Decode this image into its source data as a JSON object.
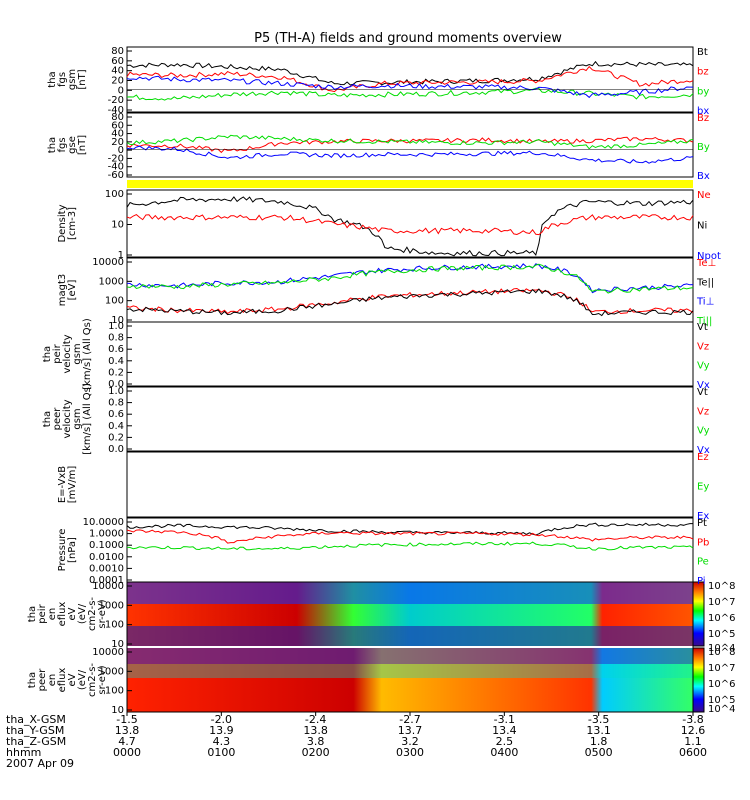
{
  "title": "P5 (TH-A) fields and ground moments overview",
  "date_label": "2007 Apr 09",
  "time_axis": {
    "rows": [
      {
        "label": "tha_X-GSM",
        "values": [
          "-1.5",
          "-2.0",
          "-2.4",
          "-2.7",
          "-3.1",
          "-3.5",
          "-3.8"
        ]
      },
      {
        "label": "tha_Y-GSM",
        "values": [
          "13.8",
          "13.9",
          "13.8",
          "13.7",
          "13.4",
          "13.1",
          "12.6"
        ]
      },
      {
        "label": "tha_Z-GSM",
        "values": [
          "4.7",
          "4.3",
          "3.8",
          "3.2",
          "2.5",
          "1.8",
          "1.1"
        ]
      },
      {
        "label": "hhmm",
        "values": [
          "0000",
          "0100",
          "0200",
          "0300",
          "0400",
          "0500",
          "0600"
        ]
      }
    ]
  },
  "colorbars": [
    {
      "labels": [
        "10^8",
        "10^7",
        "10^6",
        "10^5",
        "10^4"
      ]
    },
    {
      "labels": [
        "10^8",
        "10^7",
        "10^6",
        "10^5",
        "10^4"
      ]
    }
  ],
  "colors": {
    "black": "#000000",
    "red": "#ff0000",
    "green": "#00dd00",
    "blue": "#0000ff",
    "yellow": "#ffff00"
  },
  "chart_data": [
    {
      "type": "line",
      "panel": "fgs_gsm",
      "ylabel": [
        "tha",
        "fgs",
        "gsm",
        "[nT]"
      ],
      "yticks": [
        "80",
        "60",
        "40",
        "20",
        "0",
        "-20",
        "-40"
      ],
      "ylim": [
        -45,
        85
      ],
      "legend": [
        "Bt",
        "bz",
        "by",
        "bx"
      ],
      "series": [
        {
          "name": "Bt",
          "values": [
            48,
            50,
            45,
            40,
            12,
            14,
            16,
            18,
            22,
            52,
            50,
            48
          ]
        },
        {
          "name": "bz",
          "values": [
            30,
            28,
            32,
            25,
            -2,
            12,
            14,
            15,
            18,
            45,
            10,
            20
          ]
        },
        {
          "name": "by",
          "values": [
            -15,
            -18,
            -10,
            -5,
            -12,
            -10,
            -8,
            -5,
            -2,
            -8,
            -15,
            -10
          ]
        },
        {
          "name": "bx",
          "values": [
            25,
            20,
            18,
            12,
            5,
            8,
            6,
            5,
            3,
            -12,
            -5,
            5
          ]
        }
      ]
    },
    {
      "type": "line",
      "panel": "fgs_gse",
      "ylabel": [
        "tha",
        "fgs",
        "gse",
        "[nT]"
      ],
      "yticks": [
        "80",
        "60",
        "40",
        "20",
        "0",
        "-20",
        "-40",
        "-60"
      ],
      "ylim": [
        -65,
        85
      ],
      "legend": [
        "Bz",
        "By",
        "Bx"
      ],
      "series": [
        {
          "name": "Bz",
          "values": [
            10,
            8,
            -5,
            15,
            18,
            20,
            20,
            22,
            18,
            20,
            25,
            20
          ]
        },
        {
          "name": "By",
          "values": [
            15,
            20,
            30,
            25,
            20,
            18,
            16,
            15,
            18,
            5,
            10,
            20
          ]
        },
        {
          "name": "Bx",
          "values": [
            5,
            0,
            -20,
            -10,
            -15,
            -12,
            -12,
            -10,
            -8,
            -25,
            -30,
            -20
          ]
        }
      ]
    },
    {
      "type": "line",
      "panel": "density",
      "ylabel": [
        "Density",
        "[cm-3]"
      ],
      "scale": "log",
      "yticks": [
        "100",
        "10",
        "1"
      ],
      "ylim": [
        0.2,
        200
      ],
      "legend": [
        "Ne",
        "Ni",
        "Npot"
      ],
      "series": [
        {
          "name": "Ni",
          "values": [
            40,
            70,
            80,
            60,
            10,
            0.5,
            0.3,
            0.3,
            0.3,
            60,
            50,
            60
          ]
        },
        {
          "name": "Ne",
          "values": [
            12,
            12,
            12,
            12,
            6,
            3,
            3,
            3,
            2.5,
            12,
            12,
            12
          ]
        }
      ]
    },
    {
      "type": "line",
      "panel": "temperature",
      "ylabel": [
        "magt3",
        "[eV]"
      ],
      "scale": "log",
      "yticks": [
        "10000",
        "1000",
        "100",
        "10"
      ],
      "ylim": [
        8,
        12000
      ],
      "legend": [
        "Te⊥",
        "Te||",
        "Ti⊥",
        "Ti||"
      ],
      "series": [
        {
          "name": "Ti⊥",
          "values": [
            600,
            500,
            700,
            800,
            1500,
            3000,
            4000,
            4500,
            5000,
            300,
            400,
            500
          ]
        },
        {
          "name": "Ti||",
          "values": [
            500,
            450,
            600,
            700,
            1200,
            2500,
            3500,
            4000,
            4500,
            250,
            350,
            400
          ]
        },
        {
          "name": "Te⊥",
          "values": [
            40,
            30,
            25,
            35,
            70,
            150,
            200,
            250,
            300,
            25,
            30,
            30
          ]
        },
        {
          "name": "Te||",
          "values": [
            35,
            28,
            22,
            30,
            60,
            130,
            180,
            220,
            280,
            20,
            25,
            25
          ]
        }
      ]
    },
    {
      "type": "line",
      "panel": "peir_velocity",
      "ylabel": [
        "tha",
        "peir",
        "velocity",
        "gsm",
        "[km/s] (All Qs)"
      ],
      "yticks": [
        "1.0",
        "0.8",
        "0.6",
        "0.4",
        "0.2",
        "0.0"
      ],
      "ylim": [
        0,
        1
      ],
      "legend": [
        "Vt",
        "Vz",
        "Vy",
        "Vx"
      ],
      "series": []
    },
    {
      "type": "line",
      "panel": "peer_velocity",
      "ylabel": [
        "tha",
        "peer",
        "velocity",
        "gsm",
        "[km/s] (All Qs)"
      ],
      "yticks": [
        "1.0",
        "0.8",
        "0.6",
        "0.4",
        "0.2",
        "0.0"
      ],
      "ylim": [
        0,
        1
      ],
      "legend": [
        "Vt",
        "Vz",
        "Vy",
        "Vx"
      ],
      "series": []
    },
    {
      "type": "line",
      "panel": "efield",
      "ylabel": [
        "E=-VxB",
        "[mV/m]"
      ],
      "yticks": [],
      "legend": [
        "Ez",
        "Ey",
        "Ex"
      ],
      "series": []
    },
    {
      "type": "line",
      "panel": "pressure",
      "ylabel": [
        "Pressure",
        "[nPa]"
      ],
      "scale": "log",
      "yticks": [
        "10.0000",
        "1.0000",
        "0.1000",
        "0.0100",
        "0.0010",
        "0.0001"
      ],
      "ylim": [
        0.0001,
        10
      ],
      "legend": [
        "Pt",
        "Pb",
        "Pe",
        "Pi"
      ],
      "series": [
        {
          "name": "Pt",
          "values": [
            2,
            2.5,
            2,
            1.5,
            1,
            0.8,
            0.7,
            0.7,
            0.6,
            3,
            3,
            3
          ]
        },
        {
          "name": "Pb",
          "values": [
            1,
            0.8,
            0.1,
            0.4,
            0.7,
            0.6,
            0.6,
            0.6,
            0.5,
            0.2,
            0.3,
            0.3
          ]
        },
        {
          "name": "Pe",
          "values": [
            0.05,
            0.05,
            0.04,
            0.04,
            0.06,
            0.08,
            0.09,
            0.1,
            0.1,
            0.04,
            0.05,
            0.05
          ]
        }
      ]
    },
    {
      "type": "heatmap",
      "panel": "peir_en_eflux",
      "ylabel": [
        "tha",
        "peir",
        "en",
        "eflux",
        "eV",
        "(eV/",
        "cm2-s-",
        "sr-eV)"
      ],
      "yticks": [
        "10000",
        "1000",
        "100",
        "10"
      ],
      "scale": "log"
    },
    {
      "type": "heatmap",
      "panel": "peer_en_eflux",
      "ylabel": [
        "tha",
        "peer",
        "en",
        "eflux",
        "eV",
        "(eV/",
        "cm2-s-",
        "sr-eV)"
      ],
      "yticks": [
        "10000",
        "1000",
        "100",
        "10"
      ],
      "scale": "log"
    }
  ]
}
